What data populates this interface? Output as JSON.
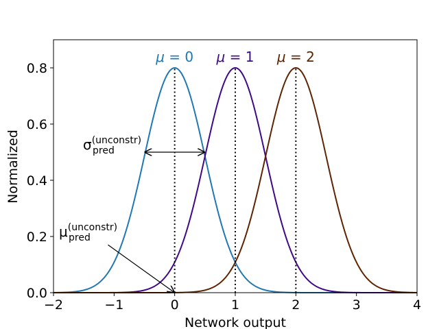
{
  "chart_data": {
    "type": "line",
    "title": "",
    "xlabel": "Network output",
    "ylabel": "Normalized",
    "xlim": [
      -2,
      4
    ],
    "ylim": [
      0,
      0.9
    ],
    "xticks": [
      -2,
      -1,
      0,
      1,
      2,
      3,
      4
    ],
    "yticks": [
      0.0,
      0.2,
      0.4,
      0.6,
      0.8
    ],
    "xtick_labels": [
      "−2",
      "−1",
      "0",
      "1",
      "2",
      "3",
      "4"
    ],
    "ytick_labels": [
      "0.0",
      "0.2",
      "0.4",
      "0.6",
      "0.8"
    ],
    "grid": false,
    "legend": "none",
    "series": [
      {
        "mu": 0,
        "sigma": 0.5,
        "peak": 0.8,
        "color": "#1f77b4",
        "label_prefix": "μ",
        "label_eq": " = ",
        "label_value": "0"
      },
      {
        "mu": 1,
        "sigma": 0.5,
        "peak": 0.8,
        "color": "#3f0887",
        "label_prefix": "μ",
        "label_eq": " = ",
        "label_value": "1"
      },
      {
        "mu": 2,
        "sigma": 0.5,
        "peak": 0.8,
        "color": "#5e2300",
        "label_prefix": "μ",
        "label_eq": " = ",
        "label_value": "2"
      }
    ],
    "annotations": {
      "sigma": {
        "symbol": "σ",
        "subscript": "pred",
        "superscript": "(unconstr)",
        "arrow_from": -0.5,
        "arrow_to": 0.5,
        "arrow_y": 0.5
      },
      "mu": {
        "symbol": "μ",
        "subscript": "pred",
        "superscript": "(unconstr)",
        "arrow_tail": [
          -1.1,
          0.17
        ],
        "arrow_head": [
          0.0,
          0.0
        ]
      }
    }
  }
}
